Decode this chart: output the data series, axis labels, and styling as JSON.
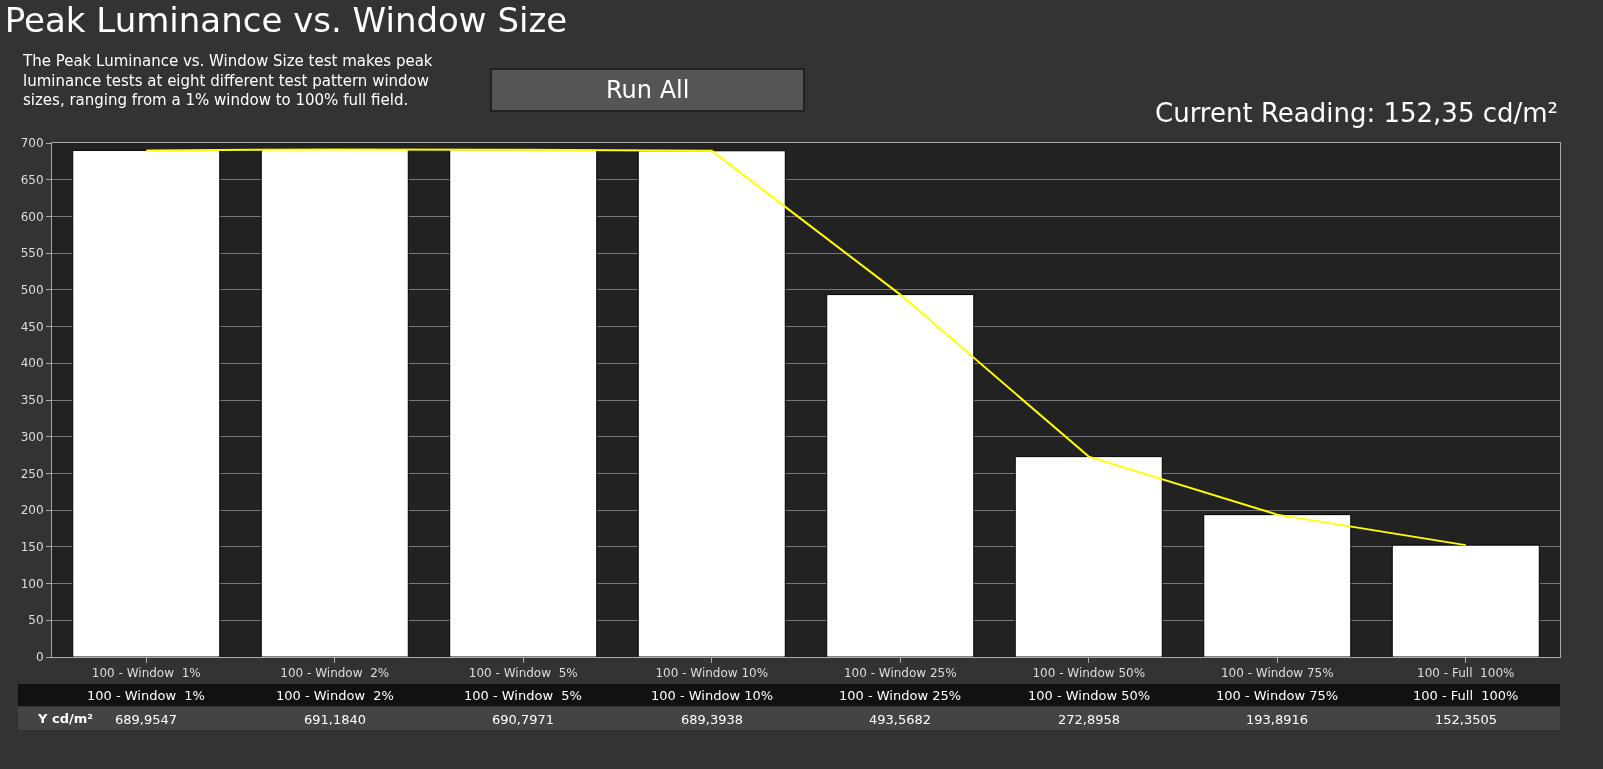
{
  "chart_data": {
    "type": "bar",
    "title": "Peak Luminance vs. Window Size",
    "subtitle": "The Peak Luminance vs. Window Size test makes peak luminance tests at eight different test pattern window sizes, ranging from a 1% window to 100% full field.",
    "categories": [
      "100 - Window  1%",
      "100 - Window  2%",
      "100 - Window  5%",
      "100 - Window 10%",
      "100 - Window 25%",
      "100 - Window 50%",
      "100 - Window 75%",
      "100 - Full  100%"
    ],
    "series": [
      {
        "color": "#ffffff",
        "values": [
          689.9547,
          691.184,
          690.7971,
          689.3938,
          493.5682,
          272.8958,
          193.8916,
          152.3505
        ],
        "value_labels": [
          "689,9547",
          "691,1840",
          "690,7971",
          "689,3938",
          "493,5682",
          "272,8958",
          "193,8916",
          "152,3505"
        ]
      },
      {
        "type": "line",
        "color": "#ffff00",
        "values": [
          689.9547,
          691.184,
          690.7971,
          689.3938,
          493.5682,
          272.8958,
          193.8916,
          152.3505
        ]
      }
    ],
    "annotations": [
      "Run All",
      "Current Reading: 152,35 cd/m²",
      "Y cd/m²"
    ],
    "ylim": [
      0,
      700
    ],
    "yticks": [
      0,
      50,
      100,
      150,
      200,
      250,
      300,
      350,
      400,
      450,
      500,
      550,
      600,
      650,
      700
    ],
    "grid": "y"
  }
}
